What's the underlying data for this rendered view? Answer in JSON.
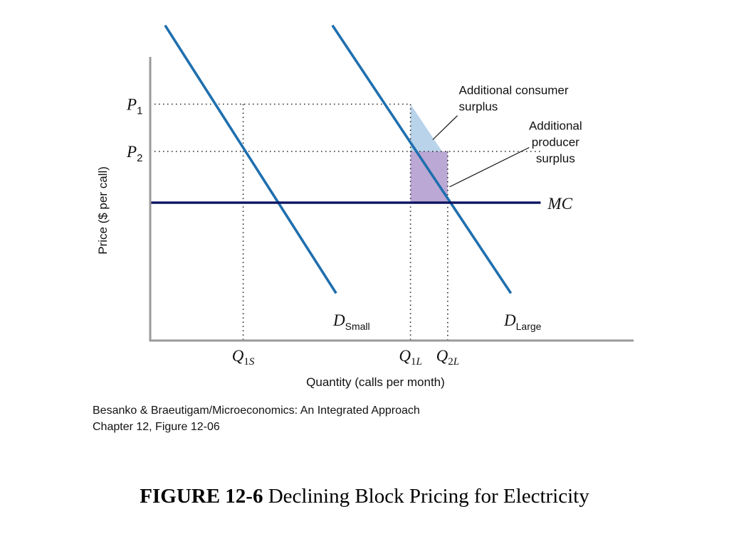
{
  "chart_data": {
    "type": "line",
    "xlabel": "Quantity (calls per month)",
    "ylabel": "Price ($ per call)",
    "x_ticks": [
      {
        "base": "Q",
        "sub": "1S",
        "value": 2.5
      },
      {
        "base": "Q",
        "sub": "1L",
        "value": 7.0
      },
      {
        "base": "Q",
        "sub": "2L",
        "value": 8.0
      }
    ],
    "y_ticks": [
      {
        "base": "P",
        "sub": "1",
        "value": 6.0
      },
      {
        "base": "P",
        "sub": "2",
        "value": 4.8
      }
    ],
    "xlim": [
      0,
      13
    ],
    "ylim": [
      0,
      7.2
    ],
    "series": [
      {
        "name": "D",
        "sub": "Small",
        "kind": "demand",
        "color": "#1f6fae",
        "points": [
          [
            0.4,
            8.0
          ],
          [
            5.0,
            1.2
          ]
        ]
      },
      {
        "name": "D",
        "sub": "Large",
        "kind": "demand",
        "color": "#1f6fae",
        "points": [
          [
            4.9,
            8.0
          ],
          [
            9.7,
            1.2
          ]
        ]
      },
      {
        "name": "MC",
        "kind": "cost",
        "color": "#0c1560",
        "points": [
          [
            0,
            3.5
          ],
          [
            10.5,
            3.5
          ]
        ]
      }
    ],
    "regions": [
      {
        "label": "Additional consumer surplus",
        "color": "#b8d3ea",
        "polygon": [
          [
            7.0,
            6.0
          ],
          [
            7.0,
            4.8
          ],
          [
            7.85,
            4.8
          ]
        ]
      },
      {
        "label": "Additional producer surplus",
        "color": "#bba8d4",
        "polygon": [
          [
            7.0,
            4.8
          ],
          [
            8.0,
            4.8
          ],
          [
            8.0,
            3.5
          ],
          [
            7.0,
            3.5
          ]
        ]
      }
    ],
    "annotations": [
      {
        "id": "consumer",
        "lines": [
          "Additional consumer",
          "surplus"
        ],
        "text_at": [
          8.3,
          6.25
        ],
        "arrow_to": [
          7.6,
          5.1
        ]
      },
      {
        "id": "producer",
        "lines": [
          "Additional",
          "producer",
          "surplus"
        ],
        "text_at": [
          10.9,
          5.35
        ],
        "arrow_to": [
          8.05,
          3.9
        ]
      }
    ],
    "mc_label": "MC"
  },
  "caption": {
    "line1": "Besanko & Braeutigam/Microeconomics: An Integrated Approach",
    "line2": "Chapter 12, Figure 12-06"
  },
  "figure_title": {
    "prefix": "FIGURE 12-6",
    "text": "Declining Block Pricing for Electricity"
  }
}
